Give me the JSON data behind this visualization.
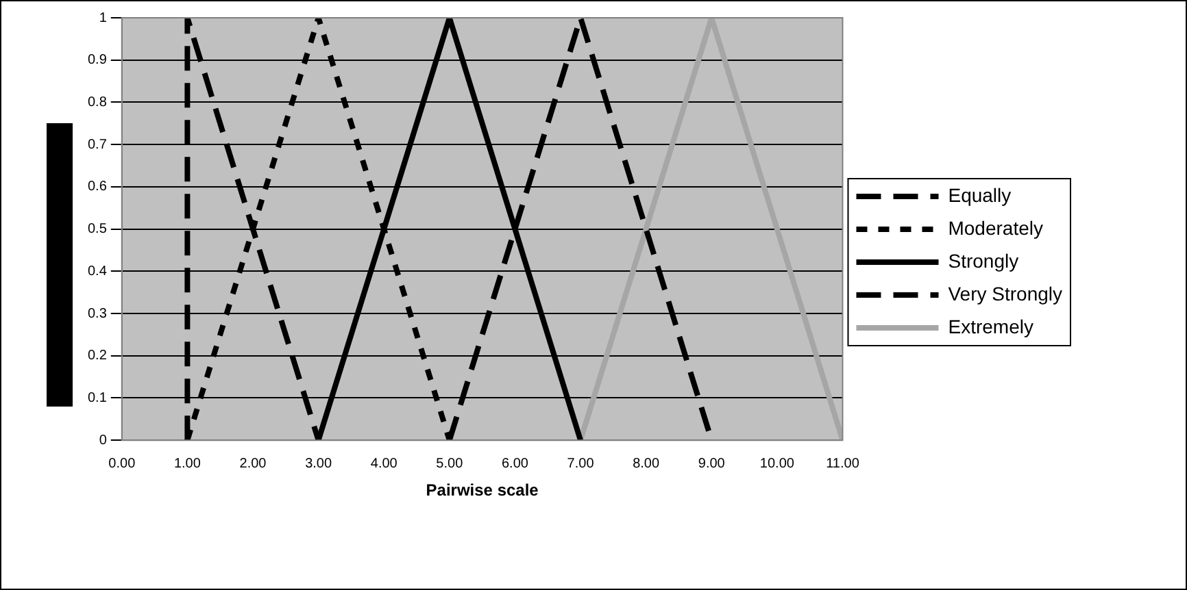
{
  "chart_data": {
    "type": "line",
    "xlabel": "Pairwise scale",
    "series": [
      {
        "name": "Equally",
        "color": "#000000",
        "line_style": "dashed",
        "x": [
          1,
          1,
          3
        ],
        "values": [
          0,
          1,
          0
        ]
      },
      {
        "name": "Moderately",
        "color": "#000000",
        "line_style": "dotted",
        "x": [
          1,
          3,
          5
        ],
        "values": [
          0,
          1,
          0
        ]
      },
      {
        "name": "Strongly",
        "color": "#000000",
        "line_style": "solid",
        "x": [
          3,
          5,
          7
        ],
        "values": [
          0,
          1,
          0
        ]
      },
      {
        "name": "Very Strongly",
        "color": "#000000",
        "line_style": "dashed",
        "x": [
          5,
          7,
          9
        ],
        "values": [
          0,
          1,
          0
        ]
      },
      {
        "name": "Extremely",
        "color": "#a6a6a6",
        "line_style": "solid",
        "x": [
          7,
          9,
          11
        ],
        "values": [
          0,
          1,
          0
        ]
      }
    ],
    "xlim": [
      0,
      11
    ],
    "xticks": [
      {
        "value": 0,
        "label": "0.00"
      },
      {
        "value": 1,
        "label": "1.00"
      },
      {
        "value": 2,
        "label": "2.00"
      },
      {
        "value": 3,
        "label": "3.00"
      },
      {
        "value": 4,
        "label": "4.00"
      },
      {
        "value": 5,
        "label": "5.00"
      },
      {
        "value": 6,
        "label": "6.00"
      },
      {
        "value": 7,
        "label": "7.00"
      },
      {
        "value": 8,
        "label": "8.00"
      },
      {
        "value": 9,
        "label": "9.00"
      },
      {
        "value": 10,
        "label": "10.00"
      },
      {
        "value": 11,
        "label": "11.00"
      }
    ],
    "ylim": [
      0,
      1
    ],
    "yticks": [
      0,
      0.1,
      0.2,
      0.3,
      0.4,
      0.5,
      0.6,
      0.7,
      0.8,
      0.9,
      1
    ],
    "grid": "y",
    "legend": "right",
    "marker": "none"
  }
}
